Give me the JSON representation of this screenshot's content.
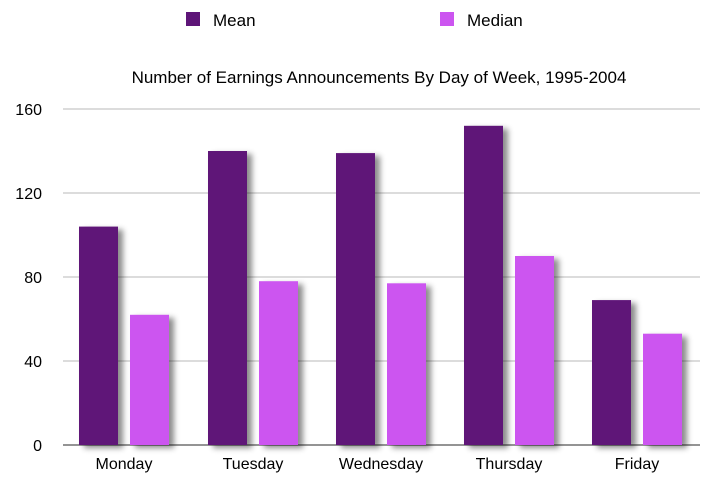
{
  "chart_data": {
    "type": "bar",
    "title": "Number of Earnings Announcements By Day of Week, 1995-2004",
    "xlabel": "",
    "ylabel": "",
    "ylim": [
      0,
      160
    ],
    "yticks": [
      0,
      40,
      80,
      120,
      160
    ],
    "grid": true,
    "legend_position": "top",
    "categories": [
      "Monday",
      "Tuesday",
      "Wednesday",
      "Thursday",
      "Friday"
    ],
    "series": [
      {
        "name": "Mean",
        "color": "#5e1578",
        "values": [
          104,
          140,
          139,
          152,
          69
        ]
      },
      {
        "name": "Median",
        "color": "#cc55f0",
        "values": [
          62,
          78,
          77,
          90,
          53
        ]
      }
    ]
  }
}
